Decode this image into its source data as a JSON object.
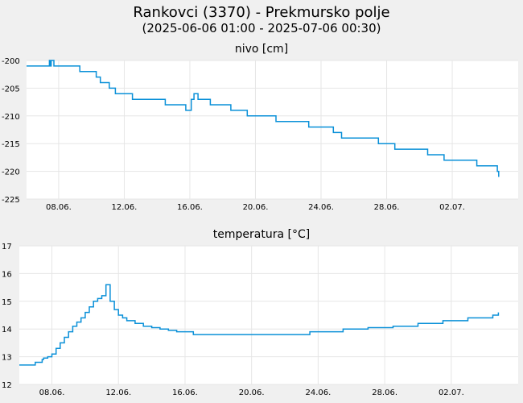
{
  "title": "Rankovci (3370) - Prekmursko polje",
  "subtitle": "(2025-06-06 01:00 - 2025-07-06 00:30)",
  "colors": {
    "background": "#f0f0f0",
    "plot_background": "#ffffff",
    "grid": "#e6e6e6",
    "series": "#0a90d8"
  },
  "chart_data": [
    {
      "type": "line",
      "title": "nivo [cm]",
      "x_range": [
        "2025-06-06 01:00",
        "2025-07-06 00:30"
      ],
      "ylim": [
        -225,
        -200
      ],
      "yticks": [
        "-200",
        "-205",
        "-210",
        "-215",
        "-220",
        "-225"
      ],
      "xticks": [
        "08.06.",
        "12.06.",
        "16.06.",
        "20.06.",
        "24.06.",
        "28.06.",
        "02.07."
      ],
      "grid": true,
      "series": [
        {
          "x": [
            "2025-06-06 01:00",
            "2025-06-07 10:00",
            "2025-06-07 10:30",
            "2025-06-07 12:00",
            "2025-06-07 13:00",
            "2025-06-07 14:00",
            "2025-06-07 16:00",
            "2025-06-07 17:00",
            "2025-06-09 06:00",
            "2025-06-09 07:00",
            "2025-06-10 06:00",
            "2025-06-10 07:00",
            "2025-06-10 12:00",
            "2025-06-10 13:00",
            "2025-06-11 01:00",
            "2025-06-11 02:00",
            "2025-06-11 10:00",
            "2025-06-11 11:00",
            "2025-06-12 00:00",
            "2025-06-12 01:00",
            "2025-06-12 12:00",
            "2025-06-13 12:00",
            "2025-06-14 12:00",
            "2025-06-15 12:00",
            "2025-06-15 18:00",
            "2025-06-16 00:00",
            "2025-06-16 02:00",
            "2025-06-16 06:00",
            "2025-06-16 12:00",
            "2025-06-16 18:00",
            "2025-06-17 06:00",
            "2025-06-18 12:00",
            "2025-06-19 00:00",
            "2025-06-19 12:00",
            "2025-06-20 06:00",
            "2025-06-21 06:00",
            "2025-06-22 06:00",
            "2025-06-23 06:00",
            "2025-06-24 18:00",
            "2025-06-25 06:00",
            "2025-06-26 12:00",
            "2025-06-27 12:00",
            "2025-06-28 00:00",
            "2025-06-28 12:00",
            "2025-06-30 00:00",
            "2025-06-30 12:00",
            "2025-07-01 12:00",
            "2025-07-02 12:00",
            "2025-07-03 12:00",
            "2025-07-04 18:00",
            "2025-07-04 20:00"
          ],
          "values": [
            -201,
            -201,
            -200,
            -201,
            -200,
            -200,
            -200,
            -201,
            -201,
            -202,
            -202,
            -203,
            -203,
            -204,
            -204,
            -205,
            -205,
            -206,
            -206,
            -206,
            -207,
            -207,
            -208,
            -208,
            -209,
            -209,
            -207,
            -206,
            -207,
            -207,
            -208,
            -209,
            -209,
            -210,
            -210,
            -211,
            -211,
            -212,
            -213,
            -214,
            -214,
            -215,
            -215,
            -216,
            -216,
            -217,
            -218,
            -218,
            -219,
            -220,
            -221
          ]
        }
      ]
    },
    {
      "type": "line",
      "title": "temperatura [°C]",
      "x_range": [
        "2025-06-06 01:00",
        "2025-07-06 00:30"
      ],
      "ylim": [
        12,
        17
      ],
      "yticks": [
        "17",
        "16",
        "15",
        "14",
        "13",
        "12"
      ],
      "xticks": [
        "08.06.",
        "12.06.",
        "16.06.",
        "20.06.",
        "24.06.",
        "28.06.",
        "02.07."
      ],
      "grid": true,
      "series": [
        {
          "x": [
            "2025-06-06 01:00",
            "2025-06-06 18:00",
            "2025-06-07 00:00",
            "2025-06-07 10:00",
            "2025-06-07 12:00",
            "2025-06-07 18:00",
            "2025-06-08 00:00",
            "2025-06-08 06:00",
            "2025-06-08 12:00",
            "2025-06-08 18:00",
            "2025-06-09 00:00",
            "2025-06-09 06:00",
            "2025-06-09 12:00",
            "2025-06-09 18:00",
            "2025-06-10 00:00",
            "2025-06-10 06:00",
            "2025-06-10 12:00",
            "2025-06-10 18:00",
            "2025-06-11 00:00",
            "2025-06-11 06:00",
            "2025-06-11 12:00",
            "2025-06-11 18:00",
            "2025-06-12 00:00",
            "2025-06-12 06:00",
            "2025-06-12 12:00",
            "2025-06-13 00:00",
            "2025-06-13 12:00",
            "2025-06-14 00:00",
            "2025-06-14 12:00",
            "2025-06-15 00:00",
            "2025-06-15 12:00",
            "2025-06-16 12:00",
            "2025-06-19 12:00",
            "2025-06-22 00:00",
            "2025-06-23 12:00",
            "2025-06-24 12:00",
            "2025-06-25 12:00",
            "2025-06-27 00:00",
            "2025-06-28 12:00",
            "2025-06-30 00:00",
            "2025-07-01 12:00",
            "2025-07-03 00:00",
            "2025-07-04 12:00",
            "2025-07-04 20:00"
          ],
          "values": [
            12.7,
            12.7,
            12.8,
            12.9,
            12.95,
            13.0,
            13.1,
            13.3,
            13.5,
            13.7,
            13.9,
            14.1,
            14.25,
            14.4,
            14.6,
            14.8,
            15.0,
            15.1,
            15.2,
            15.6,
            15.0,
            14.7,
            14.5,
            14.4,
            14.3,
            14.2,
            14.1,
            14.05,
            14.0,
            13.95,
            13.9,
            13.8,
            13.8,
            13.8,
            13.9,
            13.9,
            14.0,
            14.05,
            14.1,
            14.2,
            14.3,
            14.4,
            14.5,
            14.6
          ]
        }
      ]
    }
  ]
}
